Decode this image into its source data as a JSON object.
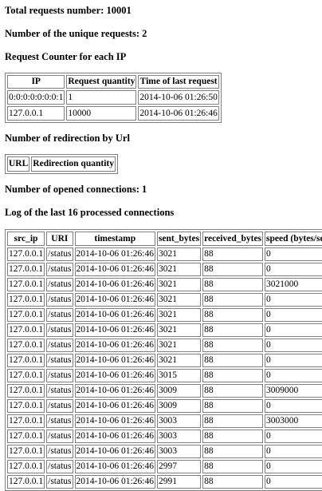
{
  "total_requests": "Total requests number: 10001",
  "unique_requests": "Number of the unique requests: 2",
  "ip_counter_title": "Request Counter for each IP",
  "ip_table": {
    "headers": [
      "IP",
      "Request quantity",
      "Time of last request"
    ],
    "rows": [
      [
        "0:0:0:0:0:0:0:1",
        "1",
        "2014-10-06 01:26:50"
      ],
      [
        "127.0.0.1",
        "10000",
        "2014-10-06 01:26:46"
      ]
    ]
  },
  "redirection_title": "Number of redirection by Url",
  "redirection_table": {
    "headers": [
      "URL",
      "Redirection quantity"
    ]
  },
  "opened_connections": "Number of opened connections: 1",
  "log_title": "Log of the last 16 processed connections",
  "log_table": {
    "headers": [
      "src_ip",
      "URI",
      "timestamp",
      "sent_bytes",
      "received_bytes",
      "speed (bytes/sec)"
    ],
    "rows": [
      [
        "127.0.0.1",
        "/status",
        "2014-10-06 01:26:46",
        "3021",
        "88",
        "0"
      ],
      [
        "127.0.0.1",
        "/status",
        "2014-10-06 01:26:46",
        "3021",
        "88",
        "0"
      ],
      [
        "127.0.0.1",
        "/status",
        "2014-10-06 01:26:46",
        "3021",
        "88",
        "3021000"
      ],
      [
        "127.0.0.1",
        "/status",
        "2014-10-06 01:26:46",
        "3021",
        "88",
        "0"
      ],
      [
        "127.0.0.1",
        "/status",
        "2014-10-06 01:26:46",
        "3021",
        "88",
        "0"
      ],
      [
        "127.0.0.1",
        "/status",
        "2014-10-06 01:26:46",
        "3021",
        "88",
        "0"
      ],
      [
        "127.0.0.1",
        "/status",
        "2014-10-06 01:26:46",
        "3021",
        "88",
        "0"
      ],
      [
        "127.0.0.1",
        "/status",
        "2014-10-06 01:26:46",
        "3021",
        "88",
        "0"
      ],
      [
        "127.0.0.1",
        "/status",
        "2014-10-06 01:26:46",
        "3015",
        "88",
        "0"
      ],
      [
        "127.0.0.1",
        "/status",
        "2014-10-06 01:26:46",
        "3009",
        "88",
        "3009000"
      ],
      [
        "127.0.0.1",
        "/status",
        "2014-10-06 01:26:46",
        "3009",
        "88",
        "0"
      ],
      [
        "127.0.0.1",
        "/status",
        "2014-10-06 01:26:46",
        "3003",
        "88",
        "3003000"
      ],
      [
        "127.0.0.1",
        "/status",
        "2014-10-06 01:26:46",
        "3003",
        "88",
        "0"
      ],
      [
        "127.0.0.1",
        "/status",
        "2014-10-06 01:26:46",
        "3003",
        "88",
        "0"
      ],
      [
        "127.0.0.1",
        "/status",
        "2014-10-06 01:26:46",
        "2997",
        "88",
        "0"
      ],
      [
        "127.0.0.1",
        "/status",
        "2014-10-06 01:26:46",
        "2991",
        "88",
        "0"
      ]
    ]
  }
}
